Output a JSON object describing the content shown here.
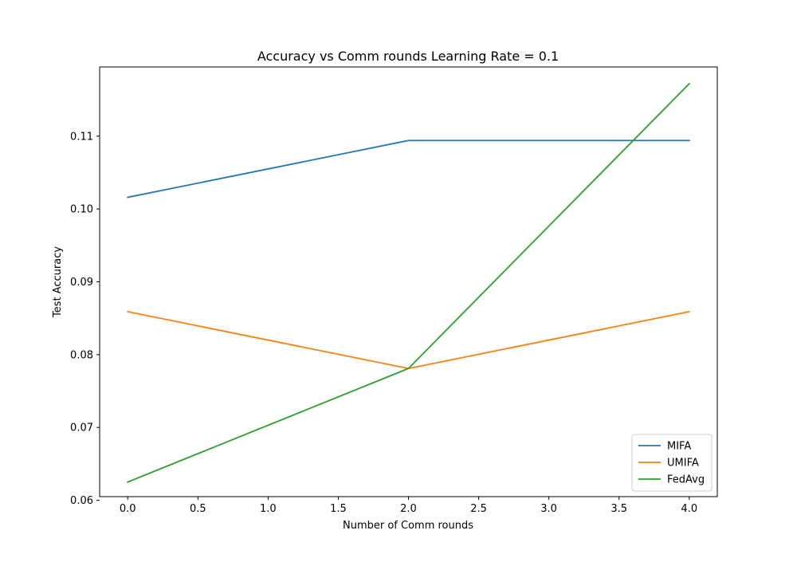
{
  "chart_data": {
    "type": "line",
    "title": "Accuracy vs Comm rounds Learning Rate = 0.1",
    "xlabel": "Number of Comm rounds",
    "ylabel": "Test Accuracy",
    "xlim": [
      -0.2,
      4.2
    ],
    "ylim": [
      0.0605,
      0.1195
    ],
    "xticks": [
      0.0,
      0.5,
      1.0,
      1.5,
      2.0,
      2.5,
      3.0,
      3.5,
      4.0
    ],
    "xtick_labels": [
      "0.0",
      "0.5",
      "1.0",
      "1.5",
      "2.0",
      "2.5",
      "3.0",
      "3.5",
      "4.0"
    ],
    "yticks": [
      0.06,
      0.07,
      0.08,
      0.09,
      0.1,
      0.11
    ],
    "ytick_labels": [
      "0.06",
      "0.07",
      "0.08",
      "0.09",
      "0.10",
      "0.11"
    ],
    "grid": false,
    "legend_position": "lower-right",
    "x": [
      0,
      2,
      4
    ],
    "series": [
      {
        "name": "MIFA",
        "color": "#1f77b4",
        "values": [
          0.1016,
          0.1094,
          0.1094
        ]
      },
      {
        "name": "UMIFA",
        "color": "#ff7f0e",
        "values": [
          0.0859,
          0.0781,
          0.0859
        ]
      },
      {
        "name": "FedAvg",
        "color": "#2ca02c",
        "values": [
          0.0625,
          0.0781,
          0.1172
        ]
      }
    ]
  }
}
